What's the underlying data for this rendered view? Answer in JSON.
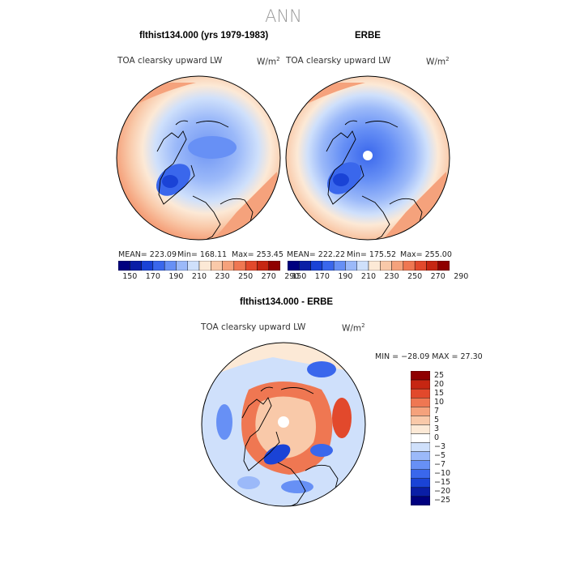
{
  "main_title": "ANN",
  "panels": [
    {
      "title": "flthist134.000 (yrs 1979-1983)",
      "var_label": "TOA clearsky upward LW",
      "units": "W/m",
      "units_exp": "2",
      "mean_text": "MEAN= 223.09",
      "min_text": "Min= 168.11",
      "max_text": "Max= 253.45"
    },
    {
      "title": "ERBE",
      "var_label": "TOA clearsky upward LW",
      "units": "W/m",
      "units_exp": "2",
      "mean_text": "MEAN= 222.22",
      "min_text": "Min= 175.52",
      "max_text": "Max= 255.00"
    },
    {
      "title": "flthist134.000 - ERBE",
      "var_label": "TOA clearsky upward LW",
      "units": "W/m",
      "units_exp": "2",
      "minmax_text": "MIN = −28.09 MAX =  27.30"
    }
  ],
  "colorbar_top": {
    "colors": [
      "#00007f",
      "#0a1ea6",
      "#1a43d6",
      "#3a67ec",
      "#6790f5",
      "#9bb9f9",
      "#cfe0fb",
      "#fce9d6",
      "#f9c9a9",
      "#f5a27c",
      "#ef7752",
      "#e2492c",
      "#c62612",
      "#8f0000"
    ],
    "ticks": [
      "150",
      "170",
      "190",
      "210",
      "230",
      "250",
      "270",
      "290"
    ]
  },
  "colorbar_diff": {
    "colors": [
      "#00007f",
      "#0a1ea6",
      "#1a43d6",
      "#3a67ec",
      "#6790f5",
      "#9bb9f9",
      "#cfe0fb",
      "#ffffff",
      "#fce9d6",
      "#f9c9a9",
      "#f5a27c",
      "#ef7752",
      "#e2492c",
      "#c62612",
      "#8f0000"
    ],
    "ticks": [
      "25",
      "20",
      "15",
      "10",
      "7",
      "5",
      "3",
      "0",
      "−3",
      "−5",
      "−7",
      "−10",
      "−15",
      "−20",
      "−25"
    ]
  }
}
